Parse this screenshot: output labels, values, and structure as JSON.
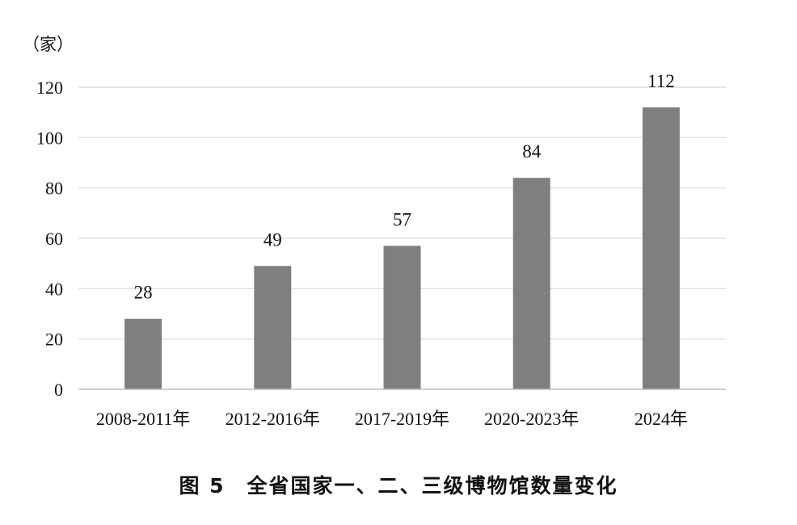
{
  "chart_data": {
    "type": "bar",
    "y_unit_label": "（家）",
    "categories": [
      "2008-2011年",
      "2012-2016年",
      "2017-2019年",
      "2020-2023年",
      "2024年"
    ],
    "values": [
      28,
      49,
      57,
      84,
      112
    ],
    "data_labels": [
      "28",
      "49",
      "57",
      "84",
      "112"
    ],
    "ylim": [
      0,
      120
    ],
    "yticks": [
      0,
      20,
      40,
      60,
      80,
      100,
      120
    ],
    "grid": true,
    "bar_color": "#7f7f7f",
    "grid_color": "#d9d9d9",
    "legend": "none"
  },
  "caption": "图 5　全省国家一、二、三级博物馆数量变化"
}
